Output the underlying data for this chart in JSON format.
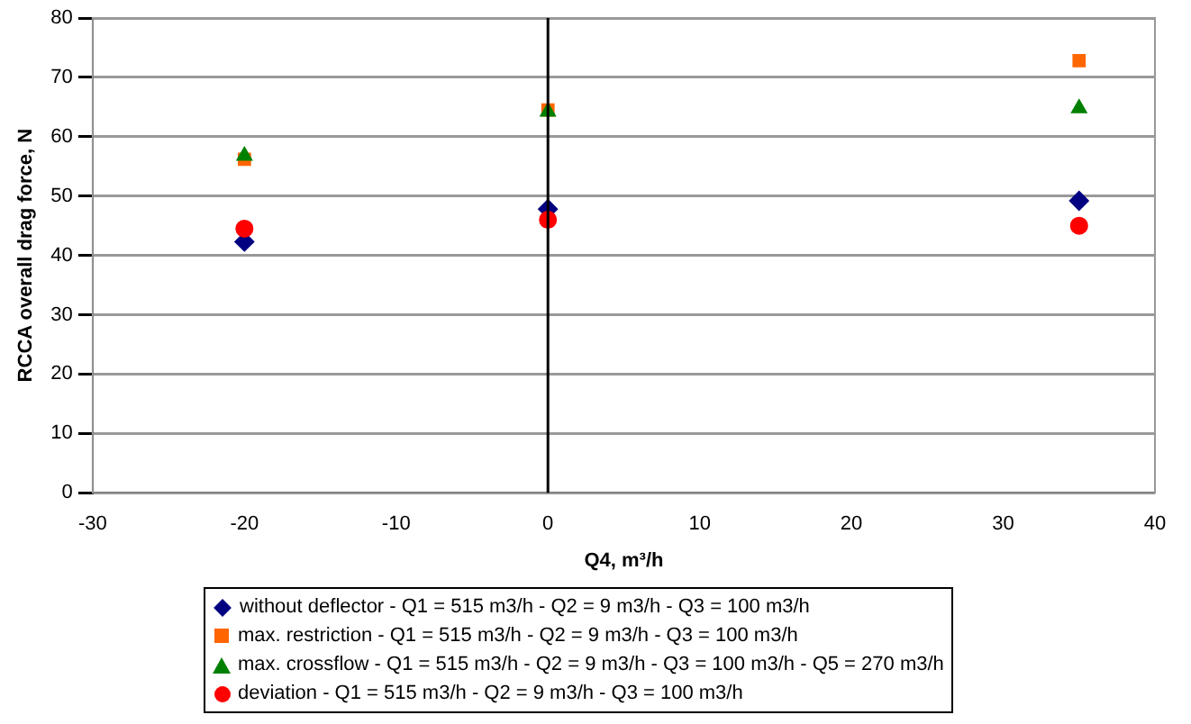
{
  "chart_data": {
    "type": "scatter",
    "xlabel": "Q4, m³/h",
    "ylabel": "RCCA overall drag force, N",
    "x": [
      -20,
      0,
      35
    ],
    "xlim": [
      -30,
      40
    ],
    "xticks": [
      -30,
      -20,
      -10,
      0,
      10,
      20,
      30,
      40
    ],
    "ylim": [
      0,
      80
    ],
    "yticks": [
      0,
      10,
      20,
      30,
      40,
      50,
      60,
      70,
      80
    ],
    "grid": "y",
    "legend": "bottom",
    "ref_lines": [
      {
        "axis": "x",
        "value": 0,
        "color": "#000000"
      }
    ],
    "series": [
      {
        "name": "without deflector - Q1 = 515 m3/h - Q2 = 9 m3/h - Q3 = 100 m3/h",
        "color": "#000080",
        "marker": "diamond",
        "values": [
          42.3,
          47.8,
          49.2
        ]
      },
      {
        "name": "max. restriction - Q1 = 515 m3/h - Q2 = 9 m3/h - Q3 = 100 m3/h",
        "color": "#ff6600",
        "marker": "square",
        "values": [
          56.2,
          64.5,
          72.8
        ]
      },
      {
        "name": "max. crossflow - Q1 = 515 m3/h - Q2 = 9 m3/h - Q3 = 100 m3/h - Q5 = 270 m3/h",
        "color": "#008000",
        "marker": "triangle",
        "values": [
          56.8,
          64.2,
          64.8
        ]
      },
      {
        "name": "deviation - Q1 = 515 m3/h - Q2 = 9 m3/h - Q3 = 100 m3/h",
        "color": "#ff0000",
        "marker": "circle",
        "values": [
          44.5,
          46.0,
          45.0
        ]
      }
    ]
  }
}
